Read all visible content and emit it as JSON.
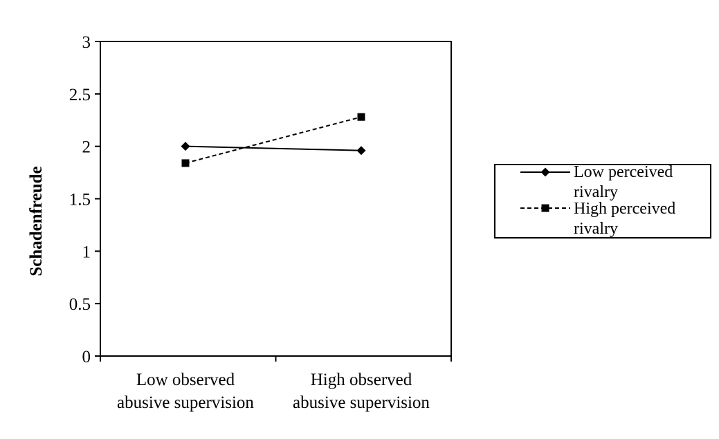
{
  "chart_data": {
    "type": "line",
    "categories": [
      [
        "Low observed",
        "abusive supervision"
      ],
      [
        "High observed",
        "abusive supervision"
      ]
    ],
    "series": [
      {
        "name": [
          "Low perceived",
          "rivalry"
        ],
        "values": [
          2.0,
          1.96
        ],
        "line_style": "solid",
        "marker": "diamond",
        "color": "#000000"
      },
      {
        "name": [
          "High perceived",
          "rivalry"
        ],
        "values": [
          1.84,
          2.28
        ],
        "line_style": "dashed",
        "marker": "square",
        "color": "#000000"
      }
    ],
    "title": "",
    "xlabel": "",
    "ylabel": "Schadenfreude",
    "ylim": [
      0,
      3
    ],
    "yticks": [
      "0",
      "0.5",
      "1",
      "1.5",
      "2",
      "2.5",
      "3"
    ],
    "grid": false,
    "legend_position": "right"
  }
}
